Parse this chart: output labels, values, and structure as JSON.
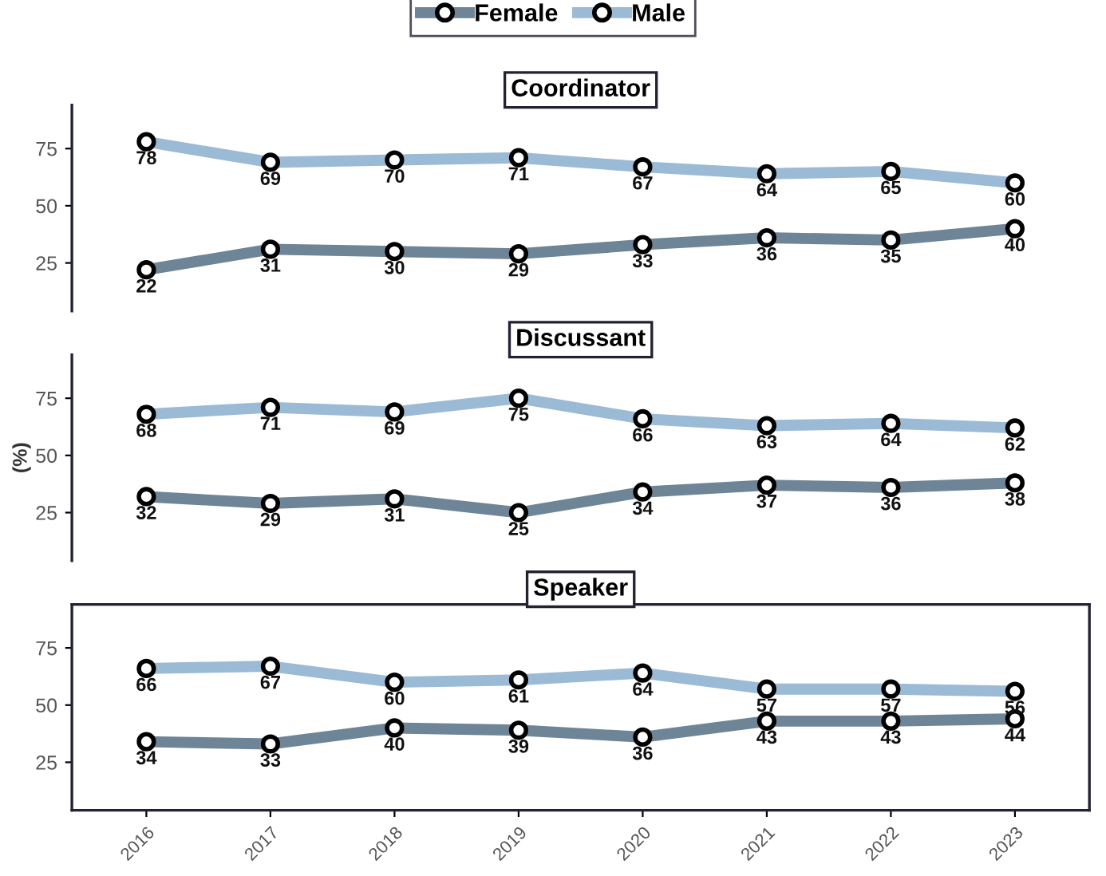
{
  "chart_data": [
    {
      "type": "line",
      "title": "Coordinator",
      "categories": [
        "2016",
        "2017",
        "2018",
        "2019",
        "2020",
        "2021",
        "2022",
        "2023"
      ],
      "series": [
        {
          "name": "Female",
          "color": "#6e8497",
          "values": [
            22,
            31,
            30,
            29,
            33,
            36,
            35,
            40
          ]
        },
        {
          "name": "Male",
          "color": "#9bbad6",
          "values": [
            78,
            69,
            70,
            71,
            67,
            64,
            65,
            60
          ]
        }
      ],
      "ylim": [
        4,
        94
      ],
      "yticks": [
        25,
        50,
        75
      ],
      "tick_labels": "y",
      "data_labels": true,
      "marker": "circle",
      "legend": "top",
      "grid": false
    },
    {
      "type": "line",
      "title": "Discussant",
      "ylabel": "(%)",
      "categories": [
        "2016",
        "2017",
        "2018",
        "2019",
        "2020",
        "2021",
        "2022",
        "2023"
      ],
      "series": [
        {
          "color": "#6e8497",
          "values": [
            32,
            29,
            31,
            25,
            34,
            37,
            36,
            38
          ]
        },
        {
          "color": "#9bbad6",
          "values": [
            68,
            71,
            69,
            75,
            66,
            63,
            64,
            62
          ]
        }
      ],
      "ylim": [
        4,
        94
      ],
      "yticks": [
        25,
        50,
        75
      ],
      "tick_labels": "y",
      "data_labels": true,
      "marker": "circle",
      "grid": false
    },
    {
      "type": "line",
      "title": "Speaker",
      "categories": [
        "2016",
        "2017",
        "2018",
        "2019",
        "2020",
        "2021",
        "2022",
        "2023"
      ],
      "series": [
        {
          "color": "#6e8497",
          "values": [
            34,
            33,
            40,
            39,
            36,
            43,
            43,
            44
          ]
        },
        {
          "color": "#9bbad6",
          "values": [
            66,
            67,
            60,
            61,
            64,
            57,
            57,
            56
          ]
        }
      ],
      "ylim": [
        4,
        94
      ],
      "yticks": [
        25,
        50,
        75
      ],
      "data_labels": true,
      "marker": "circle",
      "grid": false
    }
  ]
}
